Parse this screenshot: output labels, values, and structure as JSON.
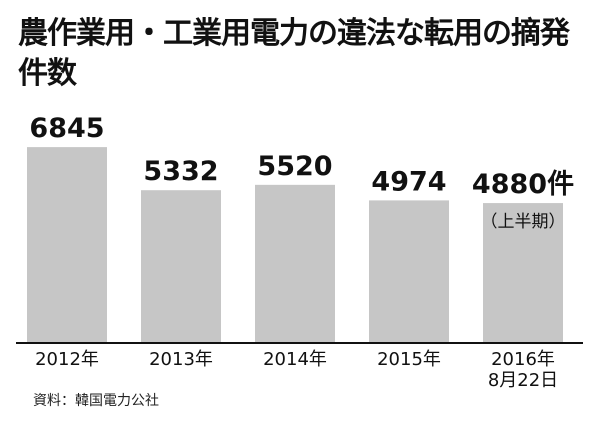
{
  "title": "農作業用・工業用電力の違法な転用の摘発件数",
  "source": "資料：韓国電力公社",
  "chart_data": {
    "type": "bar",
    "categories": [
      "2012年",
      "2013年",
      "2014年",
      "2015年",
      "2016年\n8月22日"
    ],
    "values": [
      6845,
      5332,
      5520,
      4974,
      4880
    ],
    "value_labels": [
      "6845",
      "5332",
      "5520",
      "4974",
      "4880件"
    ],
    "annotations": [
      {
        "category_index": 4,
        "text": "（上半期）"
      }
    ],
    "title": "農作業用・工業用電力の違法な転用の摘発件数",
    "xlabel": "",
    "ylabel": "",
    "unit": "件",
    "ylim": [
      0,
      8500
    ],
    "grid": false,
    "bar_color": "#c6c6c6"
  }
}
